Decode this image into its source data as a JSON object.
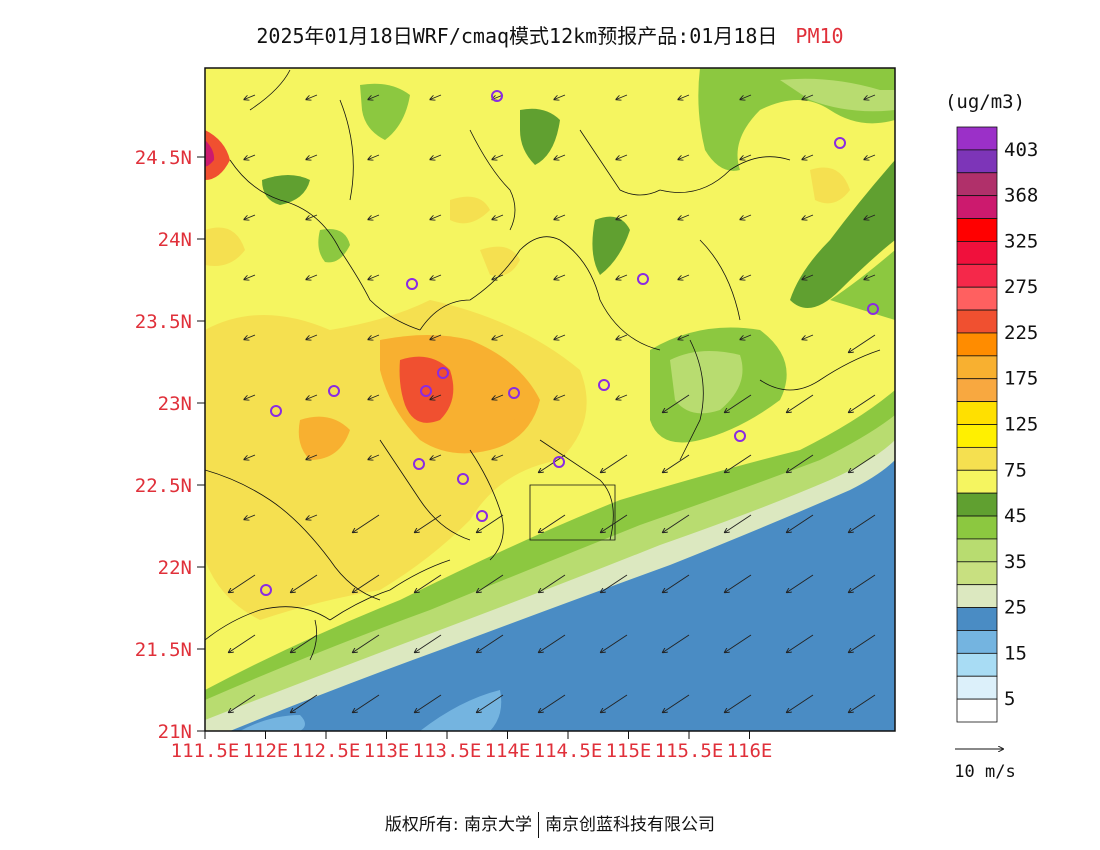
{
  "title": {
    "main": "2025年01月18日WRF/cmaq模式12km预报产品:01月18日",
    "pollutant": "PM10"
  },
  "axes": {
    "lat_labels": [
      "24.5N",
      "24N",
      "23.5N",
      "23N",
      "22.5N",
      "22N",
      "21.5N",
      "21N"
    ],
    "lat_values": [
      24.5,
      24.0,
      23.5,
      23.0,
      22.5,
      22.0,
      21.5,
      21.0
    ],
    "lon_labels": [
      "111.5E",
      "112E",
      "112.5E",
      "113E",
      "113.5E",
      "114E",
      "114.5E",
      "115E",
      "115.5E",
      "116E"
    ],
    "lon_values": [
      111.5,
      112.0,
      112.5,
      113.0,
      113.5,
      114.0,
      114.5,
      115.0,
      115.5,
      116.0
    ],
    "label_color": "#e0303a"
  },
  "legend": {
    "unit": "(ug/m3)",
    "levels": [
      {
        "label": "403",
        "color": "#9b30c8"
      },
      {
        "label": "",
        "color": "#7d35b8"
      },
      {
        "label": "368",
        "color": "#b0306a"
      },
      {
        "label": "",
        "color": "#cc1a6e"
      },
      {
        "label": "325",
        "color": "#ff0000"
      },
      {
        "label": "",
        "color": "#f0103c"
      },
      {
        "label": "275",
        "color": "#f5284a"
      },
      {
        "label": "",
        "color": "#ff6060"
      },
      {
        "label": "225",
        "color": "#f05030"
      },
      {
        "label": "",
        "color": "#ff8c00"
      },
      {
        "label": "175",
        "color": "#f8b030"
      },
      {
        "label": "",
        "color": "#f8a840"
      },
      {
        "label": "125",
        "color": "#ffe000"
      },
      {
        "label": "",
        "color": "#fff000"
      },
      {
        "label": "75",
        "color": "#f5e050"
      },
      {
        "label": "",
        "color": "#f5f560"
      },
      {
        "label": "45",
        "color": "#60a030"
      },
      {
        "label": "",
        "color": "#8cc840"
      },
      {
        "label": "35",
        "color": "#b8dc70"
      },
      {
        "label": "",
        "color": "#c8e080"
      },
      {
        "label": "25",
        "color": "#dce8c0"
      },
      {
        "label": "",
        "color": "#4a8cc4"
      },
      {
        "label": "15",
        "color": "#74b4e0"
      },
      {
        "label": "",
        "color": "#a8dcf4"
      },
      {
        "label": "5",
        "color": "#dcf0fa"
      },
      {
        "label": "",
        "color": "#ffffff"
      }
    ]
  },
  "wind_reference": {
    "label": "10 m/s"
  },
  "stations_count_note": "",
  "footer": {
    "left": "版权所有: 南京大学",
    "right": "南京创蓝科技有限公司"
  }
}
